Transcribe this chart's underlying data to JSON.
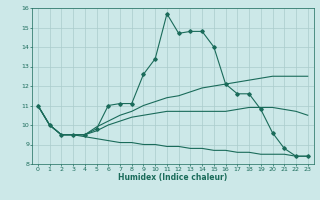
{
  "title": "",
  "xlabel": "Humidex (Indice chaleur)",
  "bg_color": "#cce8e8",
  "grid_color": "#aacccc",
  "line_color": "#1a6b5a",
  "xlim": [
    -0.5,
    23.5
  ],
  "ylim": [
    8,
    16
  ],
  "xticks": [
    0,
    1,
    2,
    3,
    4,
    5,
    6,
    7,
    8,
    9,
    10,
    11,
    12,
    13,
    14,
    15,
    16,
    17,
    18,
    19,
    20,
    21,
    22,
    23
  ],
  "yticks": [
    8,
    9,
    10,
    11,
    12,
    13,
    14,
    15,
    16
  ],
  "line1_x": [
    0,
    1,
    2,
    3,
    4,
    5,
    6,
    7,
    8,
    9,
    10,
    11,
    12,
    13,
    14,
    15,
    16,
    17,
    18,
    19,
    20,
    21,
    22,
    23
  ],
  "line1_y": [
    11.0,
    10.0,
    9.5,
    9.5,
    9.5,
    9.8,
    11.0,
    11.1,
    11.1,
    12.6,
    13.4,
    15.7,
    14.7,
    14.8,
    14.8,
    14.0,
    12.1,
    11.6,
    11.6,
    10.8,
    9.6,
    8.8,
    8.4,
    8.4
  ],
  "line2_x": [
    0,
    1,
    2,
    3,
    4,
    5,
    6,
    7,
    8,
    9,
    10,
    11,
    12,
    13,
    14,
    15,
    16,
    17,
    18,
    19,
    20,
    21,
    22,
    23
  ],
  "line2_y": [
    11.0,
    10.0,
    9.5,
    9.5,
    9.5,
    9.9,
    10.2,
    10.5,
    10.7,
    11.0,
    11.2,
    11.4,
    11.5,
    11.7,
    11.9,
    12.0,
    12.1,
    12.2,
    12.3,
    12.4,
    12.5,
    12.5,
    12.5,
    12.5
  ],
  "line3_x": [
    0,
    1,
    2,
    3,
    4,
    5,
    6,
    7,
    8,
    9,
    10,
    11,
    12,
    13,
    14,
    15,
    16,
    17,
    18,
    19,
    20,
    21,
    22,
    23
  ],
  "line3_y": [
    11.0,
    10.0,
    9.5,
    9.5,
    9.5,
    9.7,
    10.0,
    10.2,
    10.4,
    10.5,
    10.6,
    10.7,
    10.7,
    10.7,
    10.7,
    10.7,
    10.7,
    10.8,
    10.9,
    10.9,
    10.9,
    10.8,
    10.7,
    10.5
  ],
  "line4_x": [
    0,
    1,
    2,
    3,
    4,
    5,
    6,
    7,
    8,
    9,
    10,
    11,
    12,
    13,
    14,
    15,
    16,
    17,
    18,
    19,
    20,
    21,
    22,
    23
  ],
  "line4_y": [
    11.0,
    10.0,
    9.5,
    9.5,
    9.4,
    9.3,
    9.2,
    9.1,
    9.1,
    9.0,
    9.0,
    8.9,
    8.9,
    8.8,
    8.8,
    8.7,
    8.7,
    8.6,
    8.6,
    8.5,
    8.5,
    8.5,
    8.4,
    8.4
  ]
}
